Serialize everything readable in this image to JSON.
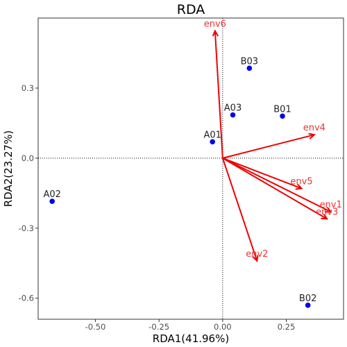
{
  "chart_data": {
    "type": "scatter",
    "title": "RDA",
    "xlabel": "RDA1(41.96%)",
    "ylabel": "RDA2(23.27%)",
    "xlim": [
      -0.725,
      0.475
    ],
    "ylim": [
      -0.69,
      0.6
    ],
    "x_ticks": [
      -0.5,
      -0.25,
      0.0,
      0.25
    ],
    "x_tick_labels": [
      "-0.50",
      "-0.25",
      "0.00",
      "0.25"
    ],
    "y_ticks": [
      -0.6,
      -0.3,
      0.0,
      0.3
    ],
    "y_tick_labels": [
      "-0.6",
      "-0.3",
      "0.0",
      "0.3"
    ],
    "grid": false,
    "reference_lines": {
      "x": 0,
      "y": 0,
      "style": "dotted"
    },
    "samples": [
      {
        "label": "A01",
        "x": -0.04,
        "y": 0.07
      },
      {
        "label": "A02",
        "x": -0.67,
        "y": -0.185
      },
      {
        "label": "A03",
        "x": 0.04,
        "y": 0.185
      },
      {
        "label": "B01",
        "x": 0.235,
        "y": 0.18
      },
      {
        "label": "B02",
        "x": 0.335,
        "y": -0.63
      },
      {
        "label": "B03",
        "x": 0.105,
        "y": 0.385
      }
    ],
    "arrows": [
      {
        "label": "env1",
        "x": 0.425,
        "y": -0.23
      },
      {
        "label": "env2",
        "x": 0.135,
        "y": -0.44
      },
      {
        "label": "env3",
        "x": 0.41,
        "y": -0.26
      },
      {
        "label": "env4",
        "x": 0.36,
        "y": 0.1
      },
      {
        "label": "env5",
        "x": 0.31,
        "y": -0.13
      },
      {
        "label": "env6",
        "x": -0.03,
        "y": 0.545
      }
    ],
    "colors": {
      "samples": "#0000ee",
      "arrows": "#ee0000",
      "sample_labels": "#222222",
      "arrow_labels": "#ee3333"
    }
  }
}
